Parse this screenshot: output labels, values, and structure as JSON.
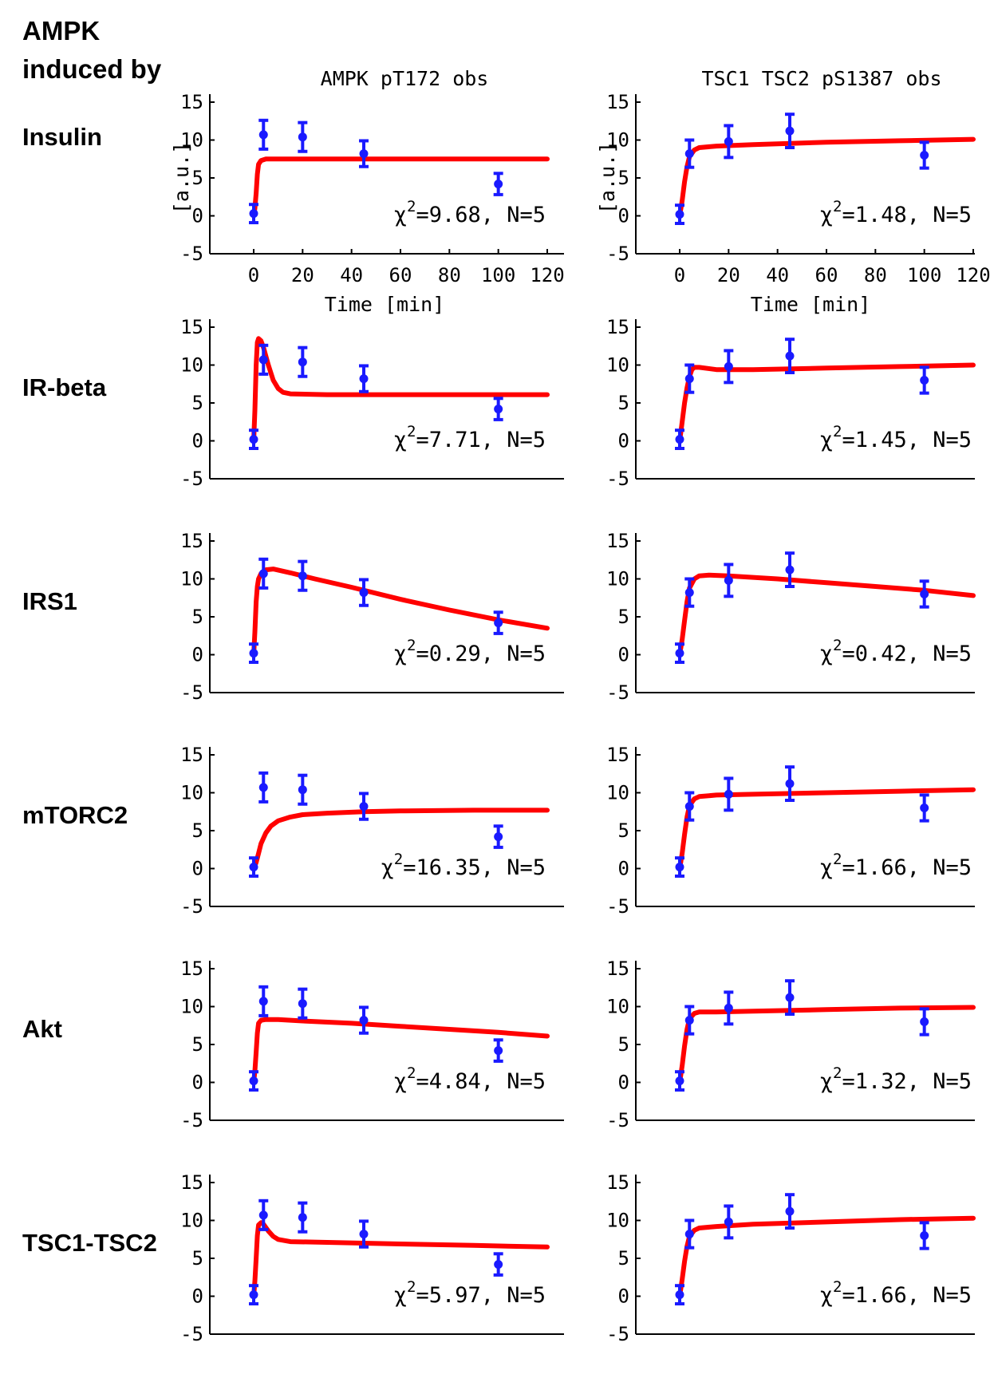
{
  "figure": {
    "title_line1": "AMPK",
    "title_line2": "induced by",
    "column_titles": [
      "AMPK pT172 obs",
      "TSC1 TSC2 pS1387 obs"
    ],
    "ylabel": "[a.u.]",
    "xlabel": "Time [min]",
    "row_labels": [
      "Insulin",
      "IR-beta",
      "IRS1",
      "mTORC2",
      "Akt",
      "TSC1-TSC2"
    ]
  },
  "colors": {
    "model": "#ff0000",
    "data": "#1a1aff",
    "axis": "#000000"
  },
  "chart_data": [
    {
      "type": "line",
      "row": "Insulin",
      "column": "AMPK pT172 obs",
      "xlim": [
        0,
        120
      ],
      "ylim": [
        -5,
        15
      ],
      "xticks": [
        "0",
        "20",
        "40",
        "60",
        "80",
        "100",
        "120"
      ],
      "yticks": [
        "-5",
        "0",
        "5",
        "10",
        "15"
      ],
      "data_points": [
        {
          "x": 0,
          "y": 0.3,
          "err": 1.2
        },
        {
          "x": 4,
          "y": 10.7,
          "err": 1.9
        },
        {
          "x": 20,
          "y": 10.4,
          "err": 1.9
        },
        {
          "x": 45,
          "y": 8.2,
          "err": 1.7
        },
        {
          "x": 100,
          "y": 4.2,
          "err": 1.4
        }
      ],
      "model_curve": [
        [
          0,
          0
        ],
        [
          0.5,
          1
        ],
        [
          1,
          3
        ],
        [
          1.5,
          5.5
        ],
        [
          2,
          6.8
        ],
        [
          3,
          7.3
        ],
        [
          5,
          7.5
        ],
        [
          10,
          7.5
        ],
        [
          30,
          7.5
        ],
        [
          60,
          7.5
        ],
        [
          90,
          7.5
        ],
        [
          120,
          7.5
        ]
      ],
      "chi_label": "=9.68, N=5"
    },
    {
      "type": "line",
      "row": "Insulin",
      "column": "TSC1 TSC2 pS1387 obs",
      "xlim": [
        0,
        120
      ],
      "ylim": [
        -5,
        15
      ],
      "xticks": [
        "0",
        "20",
        "40",
        "60",
        "80",
        "100",
        "120"
      ],
      "yticks": [
        "-5",
        "0",
        "5",
        "10",
        "15"
      ],
      "data_points": [
        {
          "x": 0,
          "y": 0.2,
          "err": 1.2
        },
        {
          "x": 4,
          "y": 8.2,
          "err": 1.8
        },
        {
          "x": 20,
          "y": 9.8,
          "err": 2.1
        },
        {
          "x": 45,
          "y": 11.2,
          "err": 2.2
        },
        {
          "x": 100,
          "y": 8.0,
          "err": 1.7
        }
      ],
      "model_curve": [
        [
          0,
          0
        ],
        [
          1,
          2
        ],
        [
          2,
          4.5
        ],
        [
          3,
          6.5
        ],
        [
          4,
          7.8
        ],
        [
          6,
          8.7
        ],
        [
          8,
          9.0
        ],
        [
          15,
          9.2
        ],
        [
          30,
          9.4
        ],
        [
          60,
          9.7
        ],
        [
          90,
          9.9
        ],
        [
          120,
          10.1
        ]
      ],
      "chi_label": "=1.48, N=5"
    },
    {
      "type": "line",
      "row": "IR-beta",
      "column": "AMPK pT172 obs",
      "xlim": [
        0,
        120
      ],
      "ylim": [
        -5,
        15
      ],
      "xticks": [],
      "yticks": [
        "-5",
        "0",
        "5",
        "10",
        "15"
      ],
      "data_points": [
        {
          "x": 0,
          "y": 0.2,
          "err": 1.2
        },
        {
          "x": 4,
          "y": 10.7,
          "err": 1.9
        },
        {
          "x": 20,
          "y": 10.4,
          "err": 1.9
        },
        {
          "x": 45,
          "y": 8.2,
          "err": 1.7
        },
        {
          "x": 100,
          "y": 4.2,
          "err": 1.4
        }
      ],
      "model_curve": [
        [
          0,
          0
        ],
        [
          0.5,
          4
        ],
        [
          1,
          10
        ],
        [
          1.5,
          13
        ],
        [
          2,
          13.5
        ],
        [
          3,
          13.2
        ],
        [
          4,
          12.3
        ],
        [
          6,
          10
        ],
        [
          8,
          8
        ],
        [
          10,
          6.9
        ],
        [
          12,
          6.4
        ],
        [
          15,
          6.2
        ],
        [
          30,
          6.1
        ],
        [
          60,
          6.1
        ],
        [
          90,
          6.1
        ],
        [
          120,
          6.1
        ]
      ],
      "chi_label": "=7.71, N=5"
    },
    {
      "type": "line",
      "row": "IR-beta",
      "column": "TSC1 TSC2 pS1387 obs",
      "xlim": [
        0,
        120
      ],
      "ylim": [
        -5,
        15
      ],
      "xticks": [],
      "yticks": [
        "-5",
        "0",
        "5",
        "10",
        "15"
      ],
      "data_points": [
        {
          "x": 0,
          "y": 0.2,
          "err": 1.2
        },
        {
          "x": 4,
          "y": 8.2,
          "err": 1.8
        },
        {
          "x": 20,
          "y": 9.8,
          "err": 2.1
        },
        {
          "x": 45,
          "y": 11.2,
          "err": 2.2
        },
        {
          "x": 100,
          "y": 8.0,
          "err": 1.7
        }
      ],
      "model_curve": [
        [
          0,
          0
        ],
        [
          1,
          2.5
        ],
        [
          2,
          5
        ],
        [
          3,
          7
        ],
        [
          4,
          8.5
        ],
        [
          5,
          9.4
        ],
        [
          6,
          9.7
        ],
        [
          8,
          9.7
        ],
        [
          15,
          9.4
        ],
        [
          30,
          9.4
        ],
        [
          60,
          9.6
        ],
        [
          90,
          9.8
        ],
        [
          120,
          10.0
        ]
      ],
      "chi_label": "=1.45, N=5"
    },
    {
      "type": "line",
      "row": "IRS1",
      "column": "AMPK pT172 obs",
      "xlim": [
        0,
        120
      ],
      "ylim": [
        -5,
        15
      ],
      "xticks": [],
      "yticks": [
        "-5",
        "0",
        "5",
        "10",
        "15"
      ],
      "data_points": [
        {
          "x": 0,
          "y": 0.2,
          "err": 1.2
        },
        {
          "x": 4,
          "y": 10.7,
          "err": 1.9
        },
        {
          "x": 20,
          "y": 10.4,
          "err": 1.9
        },
        {
          "x": 45,
          "y": 8.2,
          "err": 1.7
        },
        {
          "x": 100,
          "y": 4.2,
          "err": 1.4
        }
      ],
      "model_curve": [
        [
          0,
          0
        ],
        [
          0.5,
          3
        ],
        [
          1,
          7
        ],
        [
          1.5,
          9
        ],
        [
          2,
          10
        ],
        [
          3,
          10.7
        ],
        [
          5,
          11.2
        ],
        [
          8,
          11.3
        ],
        [
          15,
          10.8
        ],
        [
          25,
          10.0
        ],
        [
          40,
          8.9
        ],
        [
          60,
          7.3
        ],
        [
          80,
          5.9
        ],
        [
          100,
          4.6
        ],
        [
          120,
          3.5
        ]
      ],
      "chi_label": "=0.29, N=5"
    },
    {
      "type": "line",
      "row": "IRS1",
      "column": "TSC1 TSC2 pS1387 obs",
      "xlim": [
        0,
        120
      ],
      "ylim": [
        -5,
        15
      ],
      "xticks": [],
      "yticks": [
        "-5",
        "0",
        "5",
        "10",
        "15"
      ],
      "data_points": [
        {
          "x": 0,
          "y": 0.2,
          "err": 1.2
        },
        {
          "x": 4,
          "y": 8.2,
          "err": 1.8
        },
        {
          "x": 20,
          "y": 9.8,
          "err": 2.1
        },
        {
          "x": 45,
          "y": 11.2,
          "err": 2.2
        },
        {
          "x": 100,
          "y": 8.0,
          "err": 1.7
        }
      ],
      "model_curve": [
        [
          0,
          0
        ],
        [
          1,
          2
        ],
        [
          2,
          4.5
        ],
        [
          3,
          7
        ],
        [
          4,
          8.8
        ],
        [
          6,
          10
        ],
        [
          8,
          10.4
        ],
        [
          12,
          10.5
        ],
        [
          20,
          10.4
        ],
        [
          40,
          10.0
        ],
        [
          60,
          9.5
        ],
        [
          80,
          9.0
        ],
        [
          100,
          8.5
        ],
        [
          120,
          7.8
        ]
      ],
      "chi_label": "=0.42, N=5"
    },
    {
      "type": "line",
      "row": "mTORC2",
      "column": "AMPK pT172 obs",
      "xlim": [
        0,
        120
      ],
      "ylim": [
        -5,
        15
      ],
      "xticks": [],
      "yticks": [
        "-5",
        "0",
        "5",
        "10",
        "15"
      ],
      "data_points": [
        {
          "x": 0,
          "y": 0.2,
          "err": 1.2
        },
        {
          "x": 4,
          "y": 10.7,
          "err": 1.9
        },
        {
          "x": 20,
          "y": 10.4,
          "err": 1.9
        },
        {
          "x": 45,
          "y": 8.2,
          "err": 1.7
        },
        {
          "x": 100,
          "y": 4.2,
          "err": 1.4
        }
      ],
      "model_curve": [
        [
          0,
          0
        ],
        [
          1,
          0.8
        ],
        [
          2,
          2
        ],
        [
          3,
          3.3
        ],
        [
          5,
          4.7
        ],
        [
          7,
          5.6
        ],
        [
          10,
          6.3
        ],
        [
          15,
          6.8
        ],
        [
          20,
          7.1
        ],
        [
          30,
          7.3
        ],
        [
          45,
          7.5
        ],
        [
          60,
          7.6
        ],
        [
          90,
          7.7
        ],
        [
          120,
          7.7
        ]
      ],
      "chi_label": "=16.35, N=5"
    },
    {
      "type": "line",
      "row": "mTORC2",
      "column": "TSC1 TSC2 pS1387 obs",
      "xlim": [
        0,
        120
      ],
      "ylim": [
        -5,
        15
      ],
      "xticks": [],
      "yticks": [
        "-5",
        "0",
        "5",
        "10",
        "15"
      ],
      "data_points": [
        {
          "x": 0,
          "y": 0.2,
          "err": 1.2
        },
        {
          "x": 4,
          "y": 8.2,
          "err": 1.8
        },
        {
          "x": 20,
          "y": 9.8,
          "err": 2.1
        },
        {
          "x": 45,
          "y": 11.2,
          "err": 2.2
        },
        {
          "x": 100,
          "y": 8.0,
          "err": 1.7
        }
      ],
      "model_curve": [
        [
          0,
          0
        ],
        [
          1,
          2
        ],
        [
          2,
          4.5
        ],
        [
          3,
          6.8
        ],
        [
          4,
          8.3
        ],
        [
          6,
          9.2
        ],
        [
          8,
          9.5
        ],
        [
          15,
          9.7
        ],
        [
          30,
          9.8
        ],
        [
          60,
          10.0
        ],
        [
          90,
          10.2
        ],
        [
          120,
          10.4
        ]
      ],
      "chi_label": "=1.66, N=5"
    },
    {
      "type": "line",
      "row": "Akt",
      "column": "AMPK pT172 obs",
      "xlim": [
        0,
        120
      ],
      "ylim": [
        -5,
        15
      ],
      "xticks": [],
      "yticks": [
        "-5",
        "0",
        "5",
        "10",
        "15"
      ],
      "data_points": [
        {
          "x": 0,
          "y": 0.2,
          "err": 1.2
        },
        {
          "x": 4,
          "y": 10.7,
          "err": 1.9
        },
        {
          "x": 20,
          "y": 10.4,
          "err": 1.9
        },
        {
          "x": 45,
          "y": 8.2,
          "err": 1.7
        },
        {
          "x": 100,
          "y": 4.2,
          "err": 1.4
        }
      ],
      "model_curve": [
        [
          0,
          0
        ],
        [
          0.5,
          1.5
        ],
        [
          1,
          4
        ],
        [
          1.5,
          6.5
        ],
        [
          2,
          7.8
        ],
        [
          3,
          8.2
        ],
        [
          5,
          8.3
        ],
        [
          10,
          8.3
        ],
        [
          20,
          8.1
        ],
        [
          40,
          7.8
        ],
        [
          60,
          7.4
        ],
        [
          80,
          7.0
        ],
        [
          100,
          6.6
        ],
        [
          120,
          6.1
        ]
      ],
      "chi_label": "=4.84, N=5"
    },
    {
      "type": "line",
      "row": "Akt",
      "column": "TSC1 TSC2 pS1387 obs",
      "xlim": [
        0,
        120
      ],
      "ylim": [
        -5,
        15
      ],
      "xticks": [],
      "yticks": [
        "-5",
        "0",
        "5",
        "10",
        "15"
      ],
      "data_points": [
        {
          "x": 0,
          "y": 0.2,
          "err": 1.2
        },
        {
          "x": 4,
          "y": 8.2,
          "err": 1.8
        },
        {
          "x": 20,
          "y": 9.8,
          "err": 2.1
        },
        {
          "x": 45,
          "y": 11.2,
          "err": 2.2
        },
        {
          "x": 100,
          "y": 8.0,
          "err": 1.7
        }
      ],
      "model_curve": [
        [
          0,
          0
        ],
        [
          1,
          2.2
        ],
        [
          2,
          4.8
        ],
        [
          3,
          7
        ],
        [
          4,
          8.4
        ],
        [
          6,
          9.1
        ],
        [
          8,
          9.3
        ],
        [
          15,
          9.3
        ],
        [
          30,
          9.4
        ],
        [
          60,
          9.6
        ],
        [
          90,
          9.8
        ],
        [
          120,
          9.9
        ]
      ],
      "chi_label": "=1.32, N=5"
    },
    {
      "type": "line",
      "row": "TSC1-TSC2",
      "column": "AMPK pT172 obs",
      "xlim": [
        0,
        120
      ],
      "ylim": [
        -5,
        15
      ],
      "xticks": [],
      "yticks": [
        "-5",
        "0",
        "5",
        "10",
        "15"
      ],
      "data_points": [
        {
          "x": 0,
          "y": 0.2,
          "err": 1.2
        },
        {
          "x": 4,
          "y": 10.7,
          "err": 1.9
        },
        {
          "x": 20,
          "y": 10.4,
          "err": 1.9
        },
        {
          "x": 45,
          "y": 8.2,
          "err": 1.7
        },
        {
          "x": 100,
          "y": 4.2,
          "err": 1.4
        }
      ],
      "model_curve": [
        [
          0,
          0
        ],
        [
          0.5,
          2
        ],
        [
          1,
          5
        ],
        [
          1.5,
          8
        ],
        [
          2,
          9.4
        ],
        [
          3,
          9.7
        ],
        [
          4,
          9.5
        ],
        [
          6,
          8.6
        ],
        [
          8,
          7.9
        ],
        [
          10,
          7.5
        ],
        [
          15,
          7.2
        ],
        [
          30,
          7.1
        ],
        [
          60,
          6.9
        ],
        [
          90,
          6.7
        ],
        [
          120,
          6.5
        ]
      ],
      "chi_label": "=5.97, N=5"
    },
    {
      "type": "line",
      "row": "TSC1-TSC2",
      "column": "TSC1 TSC2 pS1387 obs",
      "xlim": [
        0,
        120
      ],
      "ylim": [
        -5,
        15
      ],
      "xticks": [],
      "yticks": [
        "-5",
        "0",
        "5",
        "10",
        "15"
      ],
      "data_points": [
        {
          "x": 0,
          "y": 0.2,
          "err": 1.2
        },
        {
          "x": 4,
          "y": 8.2,
          "err": 1.8
        },
        {
          "x": 20,
          "y": 9.8,
          "err": 2.1
        },
        {
          "x": 45,
          "y": 11.2,
          "err": 2.2
        },
        {
          "x": 100,
          "y": 8.0,
          "err": 1.7
        }
      ],
      "model_curve": [
        [
          0,
          0
        ],
        [
          1,
          2.2
        ],
        [
          2,
          4.6
        ],
        [
          3,
          6.6
        ],
        [
          4,
          7.9
        ],
        [
          6,
          8.7
        ],
        [
          8,
          9.0
        ],
        [
          15,
          9.2
        ],
        [
          30,
          9.5
        ],
        [
          60,
          9.8
        ],
        [
          90,
          10.1
        ],
        [
          120,
          10.3
        ]
      ],
      "chi_label": "=1.66, N=5"
    }
  ]
}
